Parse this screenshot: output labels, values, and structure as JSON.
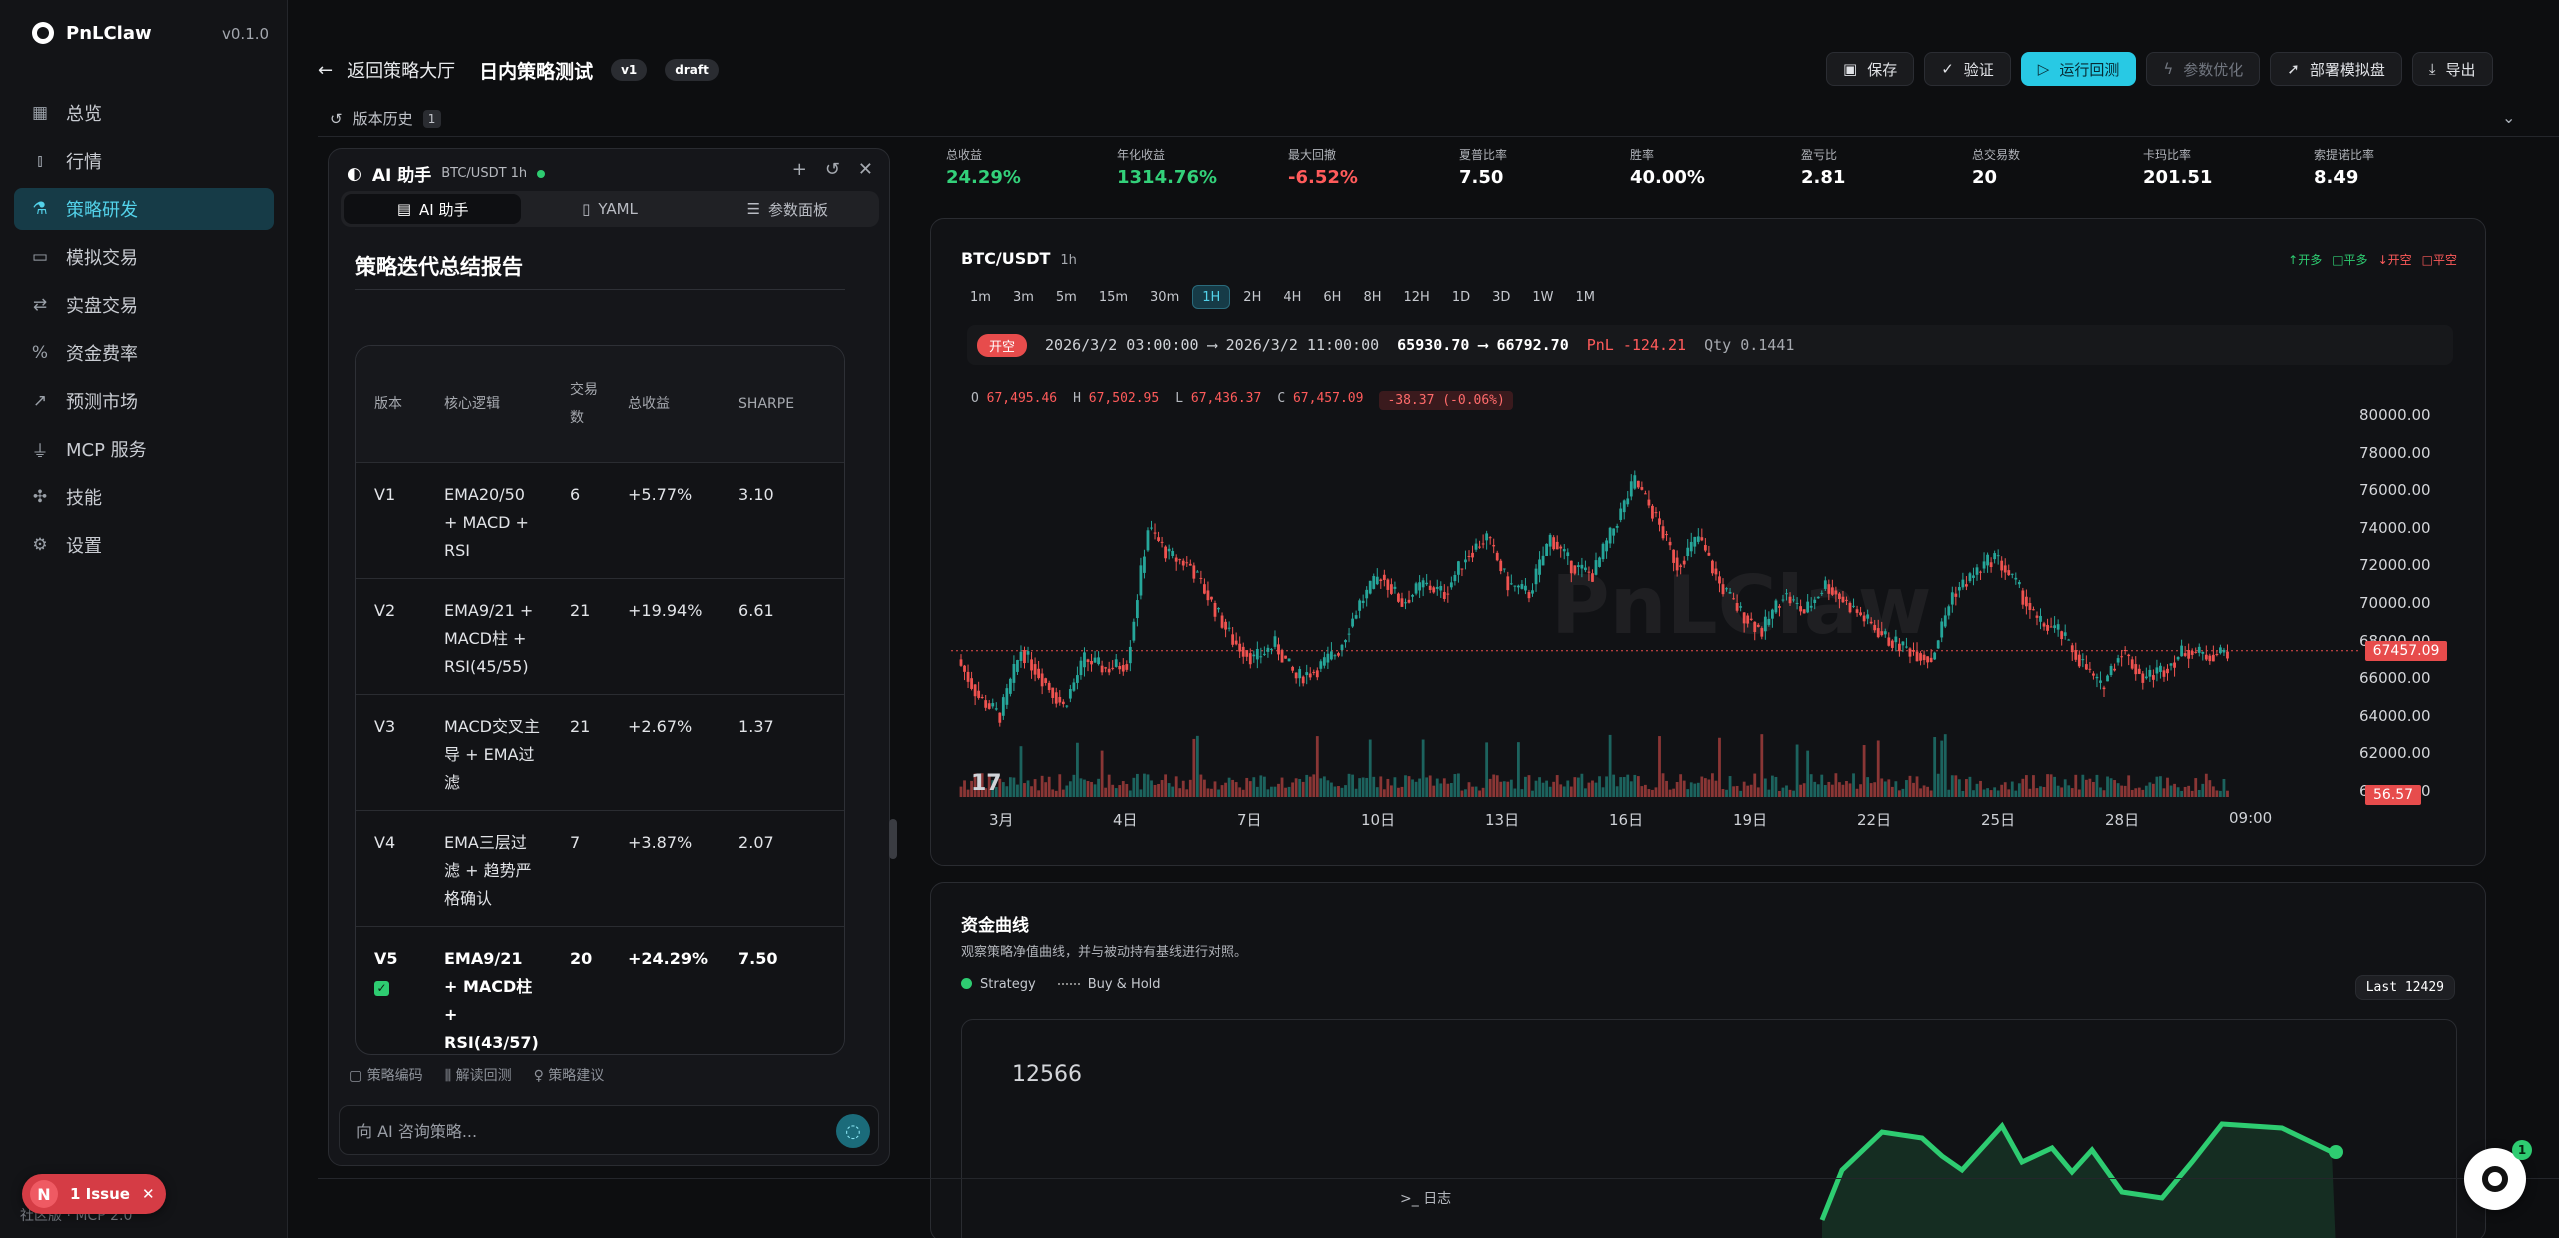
{
  "app": {
    "name": "PnLClaw",
    "version": "v0.1.0"
  },
  "sidebar": {
    "items": [
      {
        "label": "总览",
        "icon": "grid-icon"
      },
      {
        "label": "行情",
        "icon": "bar-chart-icon"
      },
      {
        "label": "策略研发",
        "icon": "flask-icon",
        "active": true
      },
      {
        "label": "模拟交易",
        "icon": "wallet-icon"
      },
      {
        "label": "实盘交易",
        "icon": "swap-icon"
      },
      {
        "label": "资金费率",
        "icon": "percent-icon"
      },
      {
        "label": "预测市场",
        "icon": "trend-icon"
      },
      {
        "label": "MCP 服务",
        "icon": "plug-icon"
      },
      {
        "label": "技能",
        "icon": "puzzle-icon"
      },
      {
        "label": "设置",
        "icon": "gear-icon"
      }
    ],
    "footer": "社区版 · MCP 2.0"
  },
  "issue": {
    "count": "N",
    "label": "1 Issue"
  },
  "header": {
    "back": "返回策略大厅",
    "title": "日内策略测试",
    "version": "v1",
    "status": "draft",
    "buttons": [
      {
        "label": "保存"
      },
      {
        "label": "验证"
      },
      {
        "label": "运行回测",
        "primary": true
      },
      {
        "label": "参数优化",
        "disabled": true
      },
      {
        "label": "部署模拟盘"
      },
      {
        "label": "导出"
      }
    ],
    "history": "版本历史",
    "history_count": "1"
  },
  "ai": {
    "title": "AI 助手",
    "pair": "BTC/USDT 1h",
    "tabs": [
      "AI 助手",
      "YAML",
      "参数面板"
    ],
    "report_title": "策略迭代总结报告",
    "table": {
      "headers": [
        "版本",
        "核心逻辑",
        "交易数",
        "总收益",
        "SHARPE"
      ],
      "rows": [
        [
          "V1",
          "EMA20/50 + MACD + RSI",
          "6",
          "+5.77%",
          "3.10"
        ],
        [
          "V2",
          "EMA9/21 + MACD柱 + RSI(45/55)",
          "21",
          "+19.94%",
          "6.61"
        ],
        [
          "V3",
          "MACD交叉主导 + EMA过滤",
          "21",
          "+2.67%",
          "1.37"
        ],
        [
          "V4",
          "EMA三层过滤 + 趋势严格确认",
          "7",
          "+3.87%",
          "2.07"
        ],
        [
          "V5",
          "EMA9/21 + MACD柱 + RSI(43/57)",
          "20",
          "+24.29%",
          "7.50"
        ]
      ]
    },
    "actions": [
      "策略编码",
      "解读回测",
      "策略建议"
    ],
    "input_placeholder": "向 AI 咨询策略..."
  },
  "stats": [
    {
      "label": "总收益",
      "value": "24.29%",
      "tone": "pos"
    },
    {
      "label": "年化收益",
      "value": "1314.76%",
      "tone": "pos"
    },
    {
      "label": "最大回撤",
      "value": "-6.52%",
      "tone": "neg"
    },
    {
      "label": "夏普比率",
      "value": "7.50"
    },
    {
      "label": "胜率",
      "value": "40.00%"
    },
    {
      "label": "盈亏比",
      "value": "2.81"
    },
    {
      "label": "总交易数",
      "value": "20"
    },
    {
      "label": "卡玛比率",
      "value": "201.51"
    },
    {
      "label": "索提诺比率",
      "value": "8.49"
    }
  ],
  "chart": {
    "symbol": "BTC/USDT",
    "interval": "1h",
    "legend": [
      "开多",
      "平多",
      "开空",
      "平空"
    ],
    "timeframes": [
      "1m",
      "3m",
      "5m",
      "15m",
      "30m",
      "1H",
      "2H",
      "4H",
      "6H",
      "8H",
      "12H",
      "1D",
      "3D",
      "1W",
      "1M"
    ],
    "active_tf": "1H",
    "trade": {
      "side": "开空",
      "time": "2026/3/2 03:00:00 ⟶ 2026/3/2 11:00:00",
      "prices": "65930.70 ⟶ 66792.70",
      "pnl": "PnL -124.21",
      "qty": "Qty 0.1441"
    },
    "ohlc": {
      "o": "67,495.46",
      "h": "67,502.95",
      "l": "67,436.37",
      "c": "67,457.09",
      "chg": "-38.37 (-0.06%)"
    },
    "watermark": "PnLClaw",
    "last_price": "67457.09",
    "last_volume": "56.57",
    "colors": {
      "up": "#26a69a",
      "down": "#ef5350"
    }
  },
  "chart_data": {
    "type": "line",
    "title": "BTC/USDT",
    "xlabel": "",
    "ylabel": "",
    "x_ticks": [
      "3月",
      "4日",
      "7日",
      "10日",
      "13日",
      "16日",
      "19日",
      "22日",
      "25日",
      "28日",
      "09:00"
    ],
    "y_ticks": [
      "80000.00",
      "78000.00",
      "76000.00",
      "74000.00",
      "72000.00",
      "70000.00",
      "68000.00",
      "66000.00",
      "64000.00",
      "62000.00",
      "60000.00"
    ],
    "ylim": [
      60000,
      80000
    ],
    "series": [
      {
        "values": [
          67000,
          65000,
          64000,
          67500,
          66000,
          64500,
          67000,
          66500,
          66800,
          74000,
          72500,
          72000,
          70000,
          68000,
          67000,
          67800,
          66000,
          66500,
          67500,
          70000,
          71500,
          70000,
          71000,
          70500,
          72500,
          73500,
          71000,
          70500,
          73500,
          72000,
          71500,
          74000,
          76500,
          74500,
          72000,
          73500,
          71000,
          69500,
          68500,
          70500,
          69500,
          71000,
          70000,
          69000,
          68000,
          67500,
          67000,
          70500,
          71500,
          72500,
          71000,
          69000,
          68500,
          67000,
          65500,
          67500,
          66000,
          66500,
          67500,
          67200,
          67457
        ]
      }
    ]
  },
  "equity": {
    "title": "资金曲线",
    "desc": "观察策略净值曲线，并与被动持有基线进行对照。",
    "legend": [
      "Strategy",
      "Buy & Hold"
    ],
    "last": "Last 12429",
    "ymax": "12566"
  },
  "bottom": {
    "log": "日志"
  },
  "fab": {
    "badge": "1"
  }
}
